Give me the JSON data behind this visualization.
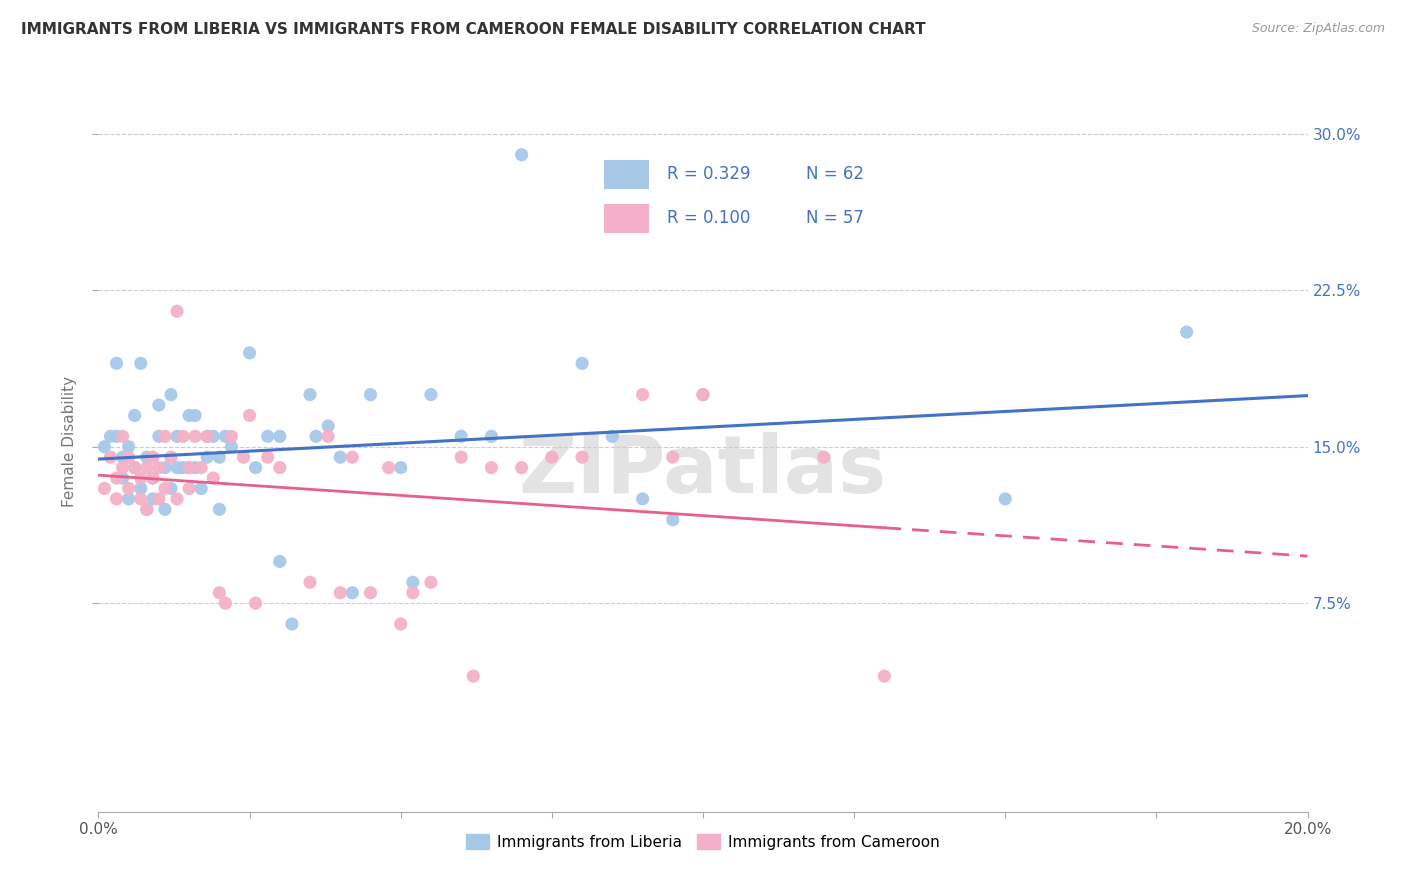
{
  "title": "IMMIGRANTS FROM LIBERIA VS IMMIGRANTS FROM CAMEROON FEMALE DISABILITY CORRELATION CHART",
  "source": "Source: ZipAtlas.com",
  "ylabel": "Female Disability",
  "ytick_labels": [
    "7.5%",
    "15.0%",
    "22.5%",
    "30.0%"
  ],
  "ytick_values": [
    0.075,
    0.15,
    0.225,
    0.3
  ],
  "xlim": [
    0.0,
    0.2
  ],
  "ylim": [
    -0.025,
    0.33
  ],
  "liberia_color": "#a8c8e8",
  "cameroon_color": "#f4b0c8",
  "line_liberia_color": "#4472c4",
  "line_cameroon_color": "#e8608a",
  "watermark": "ZIPatlas",
  "legend_r1": "R = 0.329",
  "legend_n1": "N = 62",
  "legend_r2": "R = 0.100",
  "legend_n2": "N = 57",
  "legend_label1": "Immigrants from Liberia",
  "legend_label2": "Immigrants from Cameroon",
  "liberia_x": [
    0.001,
    0.002,
    0.003,
    0.003,
    0.004,
    0.004,
    0.005,
    0.005,
    0.006,
    0.006,
    0.007,
    0.007,
    0.008,
    0.008,
    0.009,
    0.009,
    0.01,
    0.01,
    0.011,
    0.011,
    0.012,
    0.012,
    0.013,
    0.013,
    0.014,
    0.015,
    0.015,
    0.016,
    0.016,
    0.017,
    0.018,
    0.018,
    0.019,
    0.02,
    0.02,
    0.021,
    0.022,
    0.025,
    0.026,
    0.028,
    0.03,
    0.03,
    0.032,
    0.035,
    0.036,
    0.038,
    0.04,
    0.042,
    0.045,
    0.05,
    0.052,
    0.055,
    0.06,
    0.065,
    0.07,
    0.08,
    0.085,
    0.09,
    0.095,
    0.1,
    0.15,
    0.18
  ],
  "liberia_y": [
    0.15,
    0.155,
    0.19,
    0.155,
    0.145,
    0.135,
    0.15,
    0.125,
    0.14,
    0.165,
    0.19,
    0.13,
    0.12,
    0.145,
    0.135,
    0.125,
    0.17,
    0.155,
    0.14,
    0.12,
    0.13,
    0.175,
    0.155,
    0.14,
    0.14,
    0.165,
    0.14,
    0.165,
    0.14,
    0.13,
    0.155,
    0.145,
    0.155,
    0.145,
    0.12,
    0.155,
    0.15,
    0.195,
    0.14,
    0.155,
    0.155,
    0.095,
    0.065,
    0.175,
    0.155,
    0.16,
    0.145,
    0.08,
    0.175,
    0.14,
    0.085,
    0.175,
    0.155,
    0.155,
    0.29,
    0.19,
    0.155,
    0.125,
    0.115,
    0.175,
    0.125,
    0.205
  ],
  "cameroon_x": [
    0.001,
    0.002,
    0.003,
    0.003,
    0.004,
    0.004,
    0.005,
    0.005,
    0.006,
    0.007,
    0.007,
    0.008,
    0.008,
    0.009,
    0.009,
    0.01,
    0.01,
    0.011,
    0.011,
    0.012,
    0.013,
    0.013,
    0.014,
    0.015,
    0.015,
    0.016,
    0.017,
    0.018,
    0.019,
    0.02,
    0.021,
    0.022,
    0.024,
    0.025,
    0.026,
    0.028,
    0.03,
    0.035,
    0.038,
    0.04,
    0.042,
    0.045,
    0.048,
    0.05,
    0.052,
    0.055,
    0.06,
    0.062,
    0.065,
    0.07,
    0.075,
    0.08,
    0.09,
    0.095,
    0.1,
    0.12,
    0.13
  ],
  "cameroon_y": [
    0.13,
    0.145,
    0.135,
    0.125,
    0.14,
    0.155,
    0.13,
    0.145,
    0.14,
    0.135,
    0.125,
    0.12,
    0.14,
    0.135,
    0.145,
    0.125,
    0.14,
    0.155,
    0.13,
    0.145,
    0.125,
    0.215,
    0.155,
    0.14,
    0.13,
    0.155,
    0.14,
    0.155,
    0.135,
    0.08,
    0.075,
    0.155,
    0.145,
    0.165,
    0.075,
    0.145,
    0.14,
    0.085,
    0.155,
    0.08,
    0.145,
    0.08,
    0.14,
    0.065,
    0.08,
    0.085,
    0.145,
    0.04,
    0.14,
    0.14,
    0.145,
    0.145,
    0.175,
    0.145,
    0.175,
    0.145,
    0.04
  ]
}
